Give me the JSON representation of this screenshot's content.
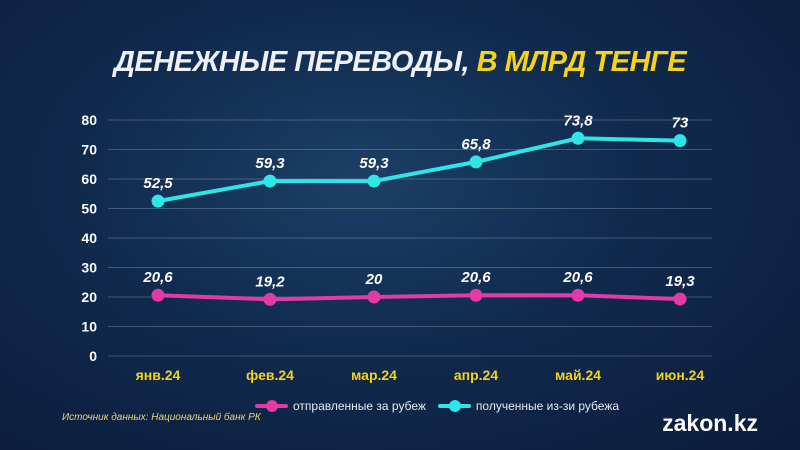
{
  "title_main": "ДЕНЕЖНЫЕ ПЕРЕВОДЫ,",
  "title_highlight": "В МЛРД ТЕНГЕ",
  "source": "Источник данных: Национальный банк РК",
  "logo": "zakon.kz",
  "colors": {
    "sent": "#e23aa6",
    "received": "#2fe6e6",
    "tick": "#f5d21e"
  },
  "chart_data": {
    "type": "line",
    "title": "ДЕНЕЖНЫЕ ПЕРЕВОДЫ, В МЛРД ТЕНГЕ",
    "categories": [
      "янв.24",
      "фев.24",
      "мар.24",
      "апр.24",
      "май.24",
      "июн.24"
    ],
    "yticks": [
      0,
      10,
      20,
      30,
      40,
      50,
      60,
      70,
      80
    ],
    "ylim": [
      0,
      80
    ],
    "grid": true,
    "legend": "bottom",
    "series": [
      {
        "name": "отправленные за рубеж",
        "values": [
          20.6,
          19.2,
          20,
          20.6,
          20.6,
          19.3
        ],
        "labels": [
          "20,6",
          "19,2",
          "20",
          "20,6",
          "20,6",
          "19,3"
        ]
      },
      {
        "name": "полученные из-зи рубежа",
        "values": [
          52.5,
          59.3,
          59.3,
          65.8,
          73.8,
          73
        ],
        "labels": [
          "52,5",
          "59,3",
          "59,3",
          "65,8",
          "73,8",
          "73"
        ]
      }
    ]
  }
}
